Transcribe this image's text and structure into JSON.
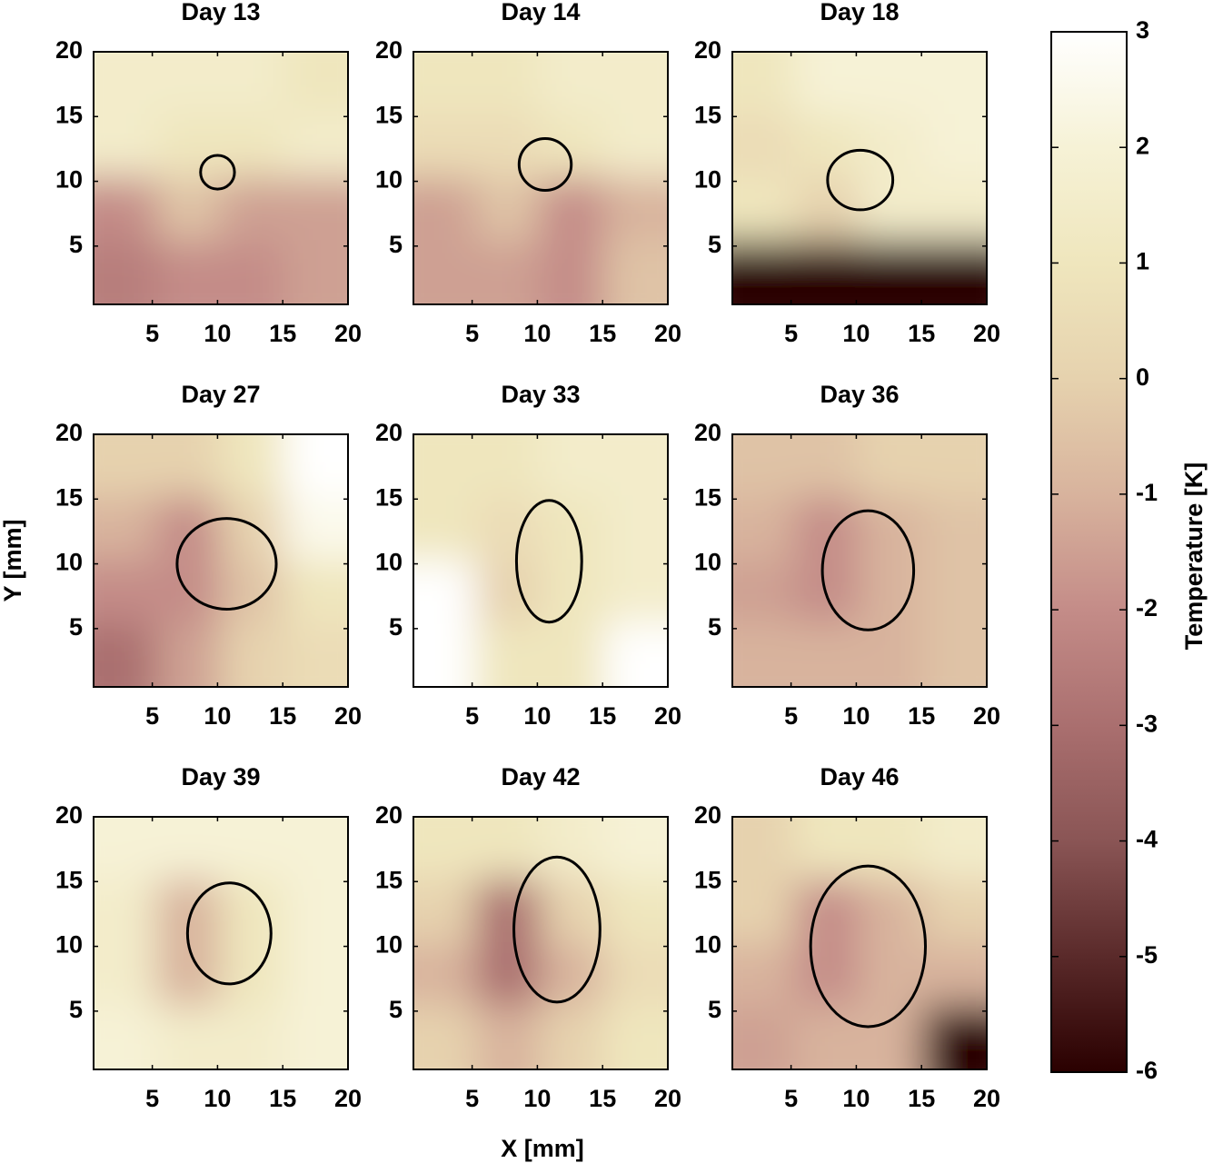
{
  "chart_data": {
    "type": "heatmap",
    "xlabel": "X [mm]",
    "ylabel": "Y [mm]",
    "xlim": [
      0.5,
      20
    ],
    "ylim": [
      0.5,
      20
    ],
    "xticks": [
      5,
      10,
      15,
      20
    ],
    "yticks": [
      5,
      10,
      15,
      20
    ],
    "colorbar": {
      "label": "Temperature [K]",
      "lim": [
        -6,
        3
      ],
      "ticks": [
        -6,
        -5,
        -4,
        -3,
        -2,
        -1,
        0,
        1,
        2,
        3
      ],
      "colormap": [
        "#2a0000",
        "#5a2a2a",
        "#8a5555",
        "#aa6f6f",
        "#c48c88",
        "#d8b39d",
        "#e6d2ae",
        "#efe6bd",
        "#f6f2d6",
        "#ffffff"
      ]
    },
    "ellipse_color": "#000000",
    "panels": [
      {
        "title": "Day 13",
        "ellipse": {
          "cx": 10,
          "cy": 10.7,
          "rx": 1.3,
          "ry": 1.3
        },
        "z": [
          [
            1.5,
            1.5,
            1.5,
            1
          ],
          [
            1.5,
            1,
            1,
            1.5
          ],
          [
            -2,
            -0.5,
            -1.5,
            -1.5
          ],
          [
            -2.5,
            -2,
            -2,
            -1.5
          ]
        ]
      },
      {
        "title": "Day 14",
        "ellipse": {
          "cx": 10.6,
          "cy": 11.3,
          "rx": 2,
          "ry": 2
        },
        "z": [
          [
            1,
            1,
            1.5,
            1.5
          ],
          [
            0.5,
            0.5,
            1,
            1.5
          ],
          [
            -1.5,
            -0.5,
            -2,
            -1
          ],
          [
            -1.5,
            -1.5,
            -2,
            -0.5
          ]
        ]
      },
      {
        "title": "Day 18",
        "ellipse": {
          "cx": 10.3,
          "cy": 10.1,
          "rx": 2.5,
          "ry": 2.3
        },
        "z": [
          [
            1,
            2,
            2,
            2
          ],
          [
            0.5,
            1,
            1.5,
            2
          ],
          [
            1,
            0,
            1.5,
            1.5
          ],
          [
            -6,
            -6,
            -6,
            -6
          ]
        ]
      },
      {
        "title": "Day 27",
        "ellipse": {
          "cx": 10.7,
          "cy": 10,
          "rx": 3.8,
          "ry": 3.5
        },
        "z": [
          [
            0,
            0,
            1,
            3
          ],
          [
            -1,
            -2,
            0,
            2.5
          ],
          [
            -2,
            -2,
            -0.5,
            1
          ],
          [
            -3,
            -1.5,
            0,
            0.5
          ]
        ]
      },
      {
        "title": "Day 33",
        "ellipse": {
          "cx": 10.9,
          "cy": 10.2,
          "rx": 2.5,
          "ry": 4.7
        },
        "z": [
          [
            1,
            1,
            1.5,
            1.5
          ],
          [
            1,
            0.5,
            1,
            1.5
          ],
          [
            3,
            0,
            1,
            1.5
          ],
          [
            3,
            1,
            1,
            3
          ]
        ]
      },
      {
        "title": "Day 36",
        "ellipse": {
          "cx": 10.9,
          "cy": 9.5,
          "rx": 3.5,
          "ry": 4.6
        },
        "z": [
          [
            -0.5,
            -0.5,
            0,
            0
          ],
          [
            -1,
            -2,
            -1,
            -0.5
          ],
          [
            -1.5,
            -2,
            -1,
            -0.5
          ],
          [
            -1,
            -1,
            -1,
            -0.5
          ]
        ]
      },
      {
        "title": "Day 39",
        "ellipse": {
          "cx": 10.9,
          "cy": 11,
          "rx": 3.2,
          "ry": 3.9
        },
        "z": [
          [
            2,
            2,
            2,
            2
          ],
          [
            1.5,
            -1,
            1,
            2
          ],
          [
            1.5,
            -1,
            1,
            2
          ],
          [
            2,
            1.5,
            1.5,
            2
          ]
        ]
      },
      {
        "title": "Day 42",
        "ellipse": {
          "cx": 11.5,
          "cy": 11.3,
          "rx": 3.3,
          "ry": 5.6
        },
        "z": [
          [
            1,
            1,
            1.5,
            2
          ],
          [
            0,
            -3,
            0,
            1
          ],
          [
            -1,
            -3,
            -1,
            0.5
          ],
          [
            0,
            -1,
            0,
            1
          ]
        ]
      },
      {
        "title": "Day 46",
        "ellipse": {
          "cx": 10.9,
          "cy": 10,
          "rx": 4.4,
          "ry": 6.2
        },
        "z": [
          [
            0,
            1,
            1,
            1.5
          ],
          [
            0,
            -2,
            -1,
            0
          ],
          [
            -1,
            -2,
            -1,
            -1
          ],
          [
            -1.5,
            -1,
            -1,
            -6
          ]
        ]
      }
    ]
  }
}
